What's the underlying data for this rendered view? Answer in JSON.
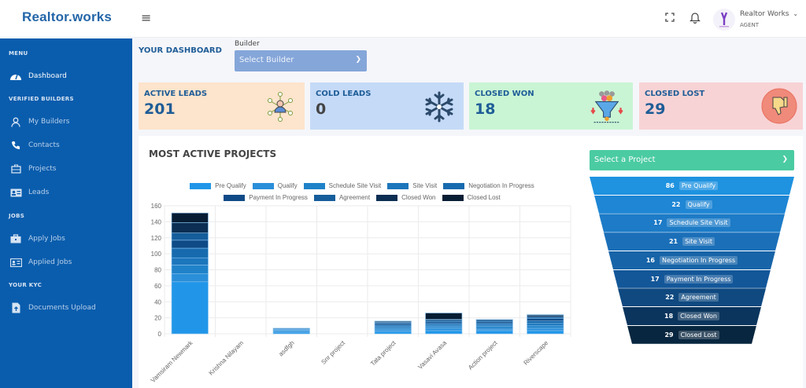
{
  "app": {
    "logo": "Realtor.works"
  },
  "header": {
    "menu_icon": "hamburger-icon",
    "fullscreen_icon": "fullscreen-icon",
    "notification_icon": "bell-icon",
    "user_name": "Realtor Works",
    "user_role": "AGENT",
    "user_chevron": "⌄"
  },
  "sidebar": {
    "sections": [
      {
        "heading": "MENU",
        "items": [
          {
            "label": "Dashboard",
            "icon": "speedometer-icon",
            "active": true
          }
        ]
      },
      {
        "heading": "VERIFIED BUILDERS",
        "items": [
          {
            "label": "My Builders",
            "icon": "user-icon"
          },
          {
            "label": "Contacts",
            "icon": "phone-icon"
          },
          {
            "label": "Projects",
            "icon": "briefcase-icon"
          },
          {
            "label": "Leads",
            "icon": "id-card-icon"
          }
        ]
      },
      {
        "heading": "JOBS",
        "items": [
          {
            "label": "Apply Jobs",
            "icon": "briefcase-icon"
          },
          {
            "label": "Applied Jobs",
            "icon": "id-card-icon"
          }
        ]
      },
      {
        "heading": "YOUR KYC",
        "items": [
          {
            "label": "Documents Upload",
            "icon": "file-upload-icon"
          }
        ]
      }
    ]
  },
  "dashboard": {
    "title": "YOUR DASHBOARD",
    "builder_label": "Builder",
    "builder_select": "Select Builder",
    "cards": [
      {
        "title": "ACTIVE LEADS",
        "value": "201",
        "bg": "#fde4cc",
        "icon": "network-people-icon"
      },
      {
        "title": "COLD LEADS",
        "value": "0",
        "bg": "#c5daf7",
        "icon": "snowflake-icon"
      },
      {
        "title": "CLOSED WON",
        "value": "18",
        "bg": "#c9f5d4",
        "icon": "funnel-people-icon"
      },
      {
        "title": "CLOSED LOST",
        "value": "29",
        "bg": "#f8d3d5",
        "icon": "thumbs-down-icon"
      }
    ],
    "panel_title": "MOST ACTIVE PROJECTS",
    "project_select": "Select a Project",
    "chevron": "⌄"
  },
  "funnel": {
    "stages": [
      {
        "value": "86",
        "label": "Pre Qualify"
      },
      {
        "value": "22",
        "label": "Qualify"
      },
      {
        "value": "17",
        "label": "Schedule Site Visit"
      },
      {
        "value": "21",
        "label": "Site Visit"
      },
      {
        "value": "16",
        "label": "Negotiation In Progress"
      },
      {
        "value": "17",
        "label": "Payment In Progress"
      },
      {
        "value": "22",
        "label": "Agreement"
      },
      {
        "value": "18",
        "label": "Closed Won"
      },
      {
        "value": "29",
        "label": "Closed Lost"
      }
    ],
    "colors": [
      "#1f93e0",
      "#1e86d4",
      "#1d7bc7",
      "#1b6fb8",
      "#1764a8",
      "#135799",
      "#0f4980",
      "#0b355d",
      "#08263f"
    ]
  },
  "chart_data": {
    "type": "bar",
    "stacked": true,
    "title": "",
    "xlabel": "",
    "ylabel": "",
    "ylim": [
      0,
      160
    ],
    "yticks": [
      0,
      20,
      40,
      60,
      80,
      100,
      120,
      140,
      160
    ],
    "grid": true,
    "legend_position": "top",
    "categories": [
      "Vamsiram Newmark",
      "Krishna Nilayam",
      "asdfgh",
      "Snr project",
      "Tata project",
      "Vasavi Avasa",
      "Action project",
      "Riverscape"
    ],
    "series": [
      {
        "name": "Pre Qualify",
        "color": "#2196e8",
        "values": [
          65,
          0,
          2,
          0,
          3,
          4,
          4,
          4
        ]
      },
      {
        "name": "Qualify",
        "color": "#2a8fd9",
        "values": [
          10,
          0,
          2,
          0,
          2,
          3,
          2,
          3
        ]
      },
      {
        "name": "Schedule Site Visit",
        "color": "#1f82c8",
        "values": [
          11,
          0,
          1,
          0,
          2,
          2,
          3,
          3
        ]
      },
      {
        "name": "Site Visit",
        "color": "#1c76bb",
        "values": [
          9,
          0,
          1,
          0,
          2,
          2,
          2,
          3
        ]
      },
      {
        "name": "Negotiation In Progress",
        "color": "#176aae",
        "values": [
          12,
          0,
          1,
          0,
          2,
          2,
          2,
          3
        ]
      },
      {
        "name": "Payment In Progress",
        "color": "#0f4a87",
        "values": [
          10,
          0,
          0,
          0,
          2,
          2,
          2,
          3
        ]
      },
      {
        "name": "Agreement",
        "color": "#155d9b",
        "values": [
          9,
          0,
          0,
          0,
          1,
          2,
          2,
          2
        ]
      },
      {
        "name": "Closed Won",
        "color": "#0b2e52",
        "values": [
          13,
          0,
          0,
          0,
          1,
          1,
          1,
          2
        ]
      },
      {
        "name": "Closed Lost",
        "color": "#071d33",
        "values": [
          12,
          0,
          0,
          0,
          1,
          8,
          0,
          1
        ]
      }
    ]
  }
}
